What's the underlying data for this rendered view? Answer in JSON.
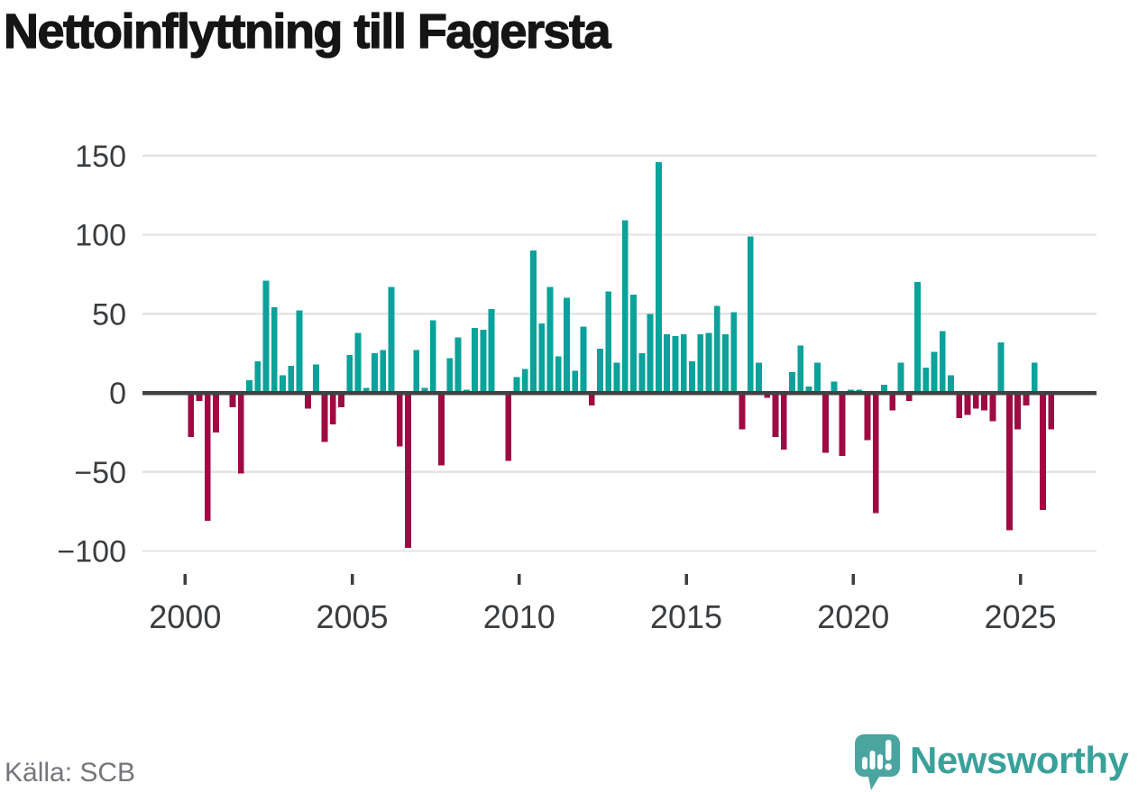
{
  "title": "Nettoinflyttning till Fagersta",
  "source": "Källa: SCB",
  "brand": {
    "name": "Newsworthy",
    "icon": "newsworthy-pin-bar-chart-icon",
    "text_color": "#3aa19a",
    "icon_color": "#4aa4a0"
  },
  "chart_data": {
    "type": "bar",
    "title": "Nettoinflyttning till Fagersta",
    "categories": [
      "2000 Q1",
      "2000 Q2",
      "2000 Q3",
      "2000 Q4",
      "2001 Q1",
      "2001 Q2",
      "2001 Q3",
      "2001 Q4",
      "2002 Q1",
      "2002 Q2",
      "2002 Q3",
      "2002 Q4",
      "2003 Q1",
      "2003 Q2",
      "2003 Q3",
      "2003 Q4",
      "2004 Q1",
      "2004 Q2",
      "2004 Q3",
      "2004 Q4",
      "2005 Q1",
      "2005 Q2",
      "2005 Q3",
      "2005 Q4",
      "2006 Q1",
      "2006 Q2",
      "2006 Q3",
      "2006 Q4",
      "2007 Q1",
      "2007 Q2",
      "2007 Q3",
      "2007 Q4",
      "2008 Q1",
      "2008 Q2",
      "2008 Q3",
      "2008 Q4",
      "2009 Q1",
      "2009 Q2",
      "2009 Q3",
      "2009 Q4",
      "2010 Q1",
      "2010 Q2",
      "2010 Q3",
      "2010 Q4",
      "2011 Q1",
      "2011 Q2",
      "2011 Q3",
      "2011 Q4",
      "2012 Q1",
      "2012 Q2",
      "2012 Q3",
      "2012 Q4",
      "2013 Q1",
      "2013 Q2",
      "2013 Q3",
      "2013 Q4",
      "2014 Q1",
      "2014 Q2",
      "2014 Q3",
      "2014 Q4",
      "2015 Q1",
      "2015 Q2",
      "2015 Q3",
      "2015 Q4",
      "2016 Q1",
      "2016 Q2",
      "2016 Q3",
      "2016 Q4",
      "2017 Q1",
      "2017 Q2",
      "2017 Q3",
      "2017 Q4",
      "2018 Q1",
      "2018 Q2",
      "2018 Q3",
      "2018 Q4",
      "2019 Q1",
      "2019 Q2",
      "2019 Q3",
      "2019 Q4",
      "2020 Q1",
      "2020 Q2",
      "2020 Q3",
      "2020 Q4",
      "2021 Q1",
      "2021 Q2",
      "2021 Q3",
      "2021 Q4",
      "2022 Q1",
      "2022 Q2",
      "2022 Q3",
      "2022 Q4",
      "2023 Q1",
      "2023 Q2",
      "2023 Q3",
      "2023 Q4",
      "2024 Q1",
      "2024 Q2",
      "2024 Q3",
      "2024 Q4",
      "2025 Q1",
      "2025 Q2",
      "2025 Q3",
      "2025 Q4"
    ],
    "values": [
      -28,
      -5,
      -81,
      -25,
      0,
      -9,
      -51,
      8,
      20,
      71,
      54,
      11,
      17,
      52,
      -10,
      18,
      -31,
      -20,
      -9,
      24,
      38,
      3,
      25,
      27,
      67,
      -34,
      -98,
      27,
      3,
      46,
      -46,
      22,
      35,
      2,
      41,
      40,
      53,
      0,
      -43,
      10,
      15,
      90,
      44,
      67,
      23,
      60,
      14,
      42,
      -8,
      28,
      64,
      19,
      109,
      62,
      25,
      50,
      146,
      37,
      36,
      37,
      20,
      37,
      38,
      55,
      37,
      51,
      -23,
      99,
      19,
      -3,
      -28,
      -36,
      13,
      30,
      4,
      19,
      -38,
      7,
      -40,
      2,
      2,
      -30,
      -76,
      5,
      -11,
      19,
      -5,
      70,
      16,
      26,
      39,
      11,
      -16,
      -14,
      -10,
      -11,
      -18,
      32,
      -87,
      -23,
      -8,
      19,
      -74,
      -23
    ],
    "positive_color": "#0aa29a",
    "negative_color": "#9e0b43",
    "y_tick_values": [
      150,
      100,
      50,
      0,
      -50,
      -100
    ],
    "y_tick_labels": [
      "150",
      "100",
      "50",
      "0",
      "−50",
      "−100"
    ],
    "x_tick_years": [
      2000,
      2005,
      2010,
      2015,
      2020,
      2025
    ],
    "x_tick_labels": [
      "2000",
      "2005",
      "2010",
      "2015",
      "2020",
      "2025"
    ],
    "ylim": [
      -100,
      150
    ],
    "xlabel": "",
    "ylabel": "",
    "grid": true,
    "legend": false,
    "zero_line": true
  }
}
